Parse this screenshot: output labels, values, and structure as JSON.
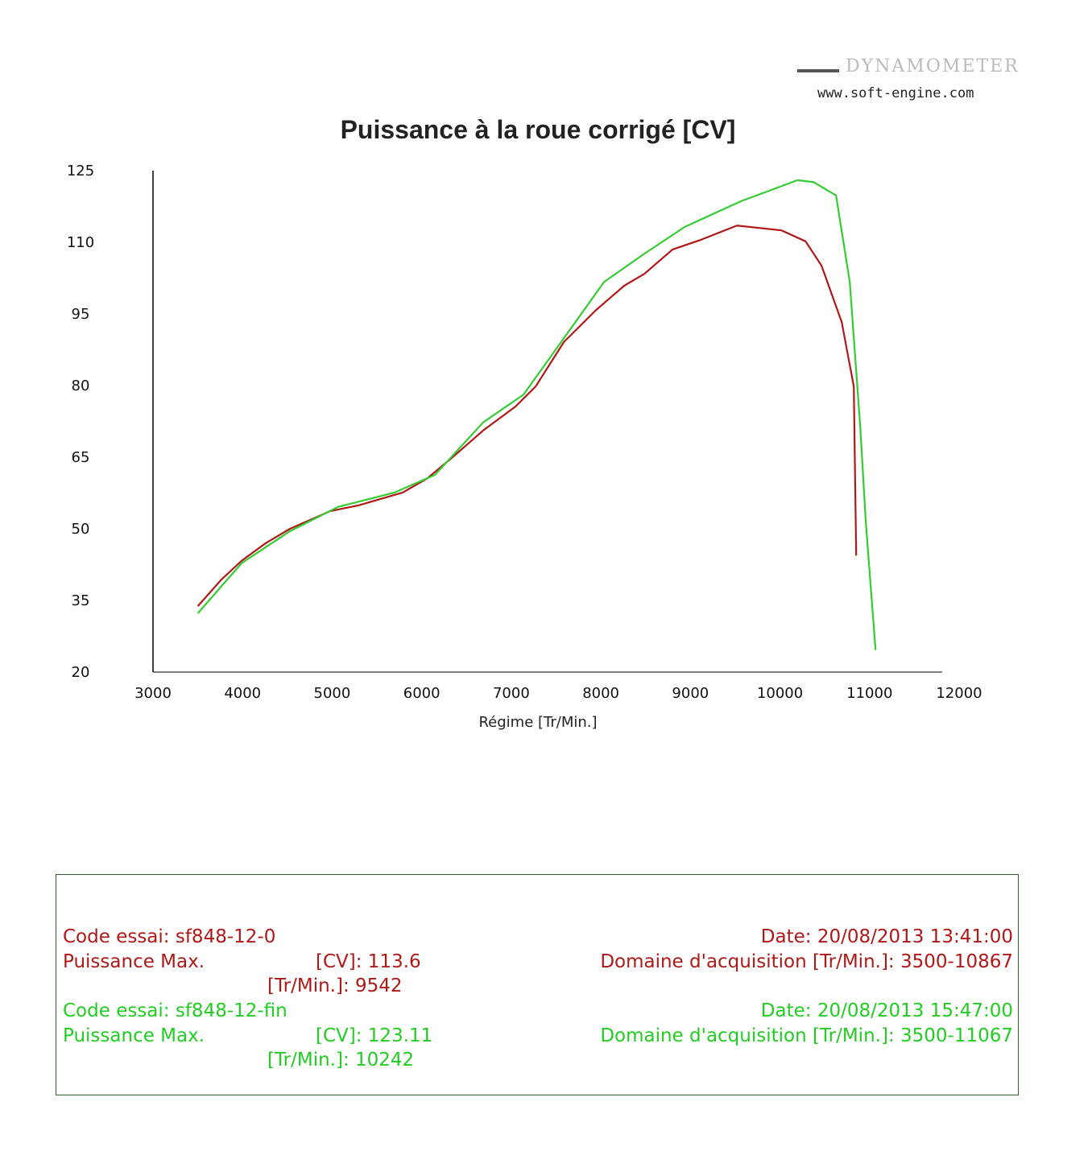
{
  "header": {
    "brand": "DYNAMOMETER",
    "url": "www.soft-engine.com"
  },
  "chart_data": {
    "type": "line",
    "title": "Puissance à la roue corrigé [CV]",
    "xlabel": "Régime [Tr/Min.]",
    "ylabel": "",
    "xlim": [
      3000,
      12000
    ],
    "ylim": [
      20,
      125
    ],
    "xticks": [
      "3000",
      "4000",
      "5000",
      "6000",
      "7000",
      "8000",
      "9000",
      "10000",
      "11000",
      "12000"
    ],
    "yticks": [
      "125",
      "110",
      "95",
      "80",
      "65",
      "50",
      "35",
      "20"
    ],
    "grid": false,
    "colors": {
      "red": "#b01818",
      "green": "#33cc33"
    },
    "series": [
      {
        "color": "#b01818",
        "x": [
          3500,
          3765,
          3989,
          4259,
          4529,
          4978,
          5293,
          5788,
          6058,
          6327,
          6687,
          7047,
          7272,
          7587,
          7946,
          8261,
          8486,
          8801,
          9115,
          9520,
          10015,
          10285,
          10464,
          10689,
          10824,
          10851
        ],
        "y": [
          33.8,
          39.4,
          43.3,
          47.0,
          50.0,
          53.7,
          54.9,
          57.6,
          60.5,
          64.7,
          70.6,
          75.6,
          79.8,
          89.1,
          95.8,
          100.9,
          103.4,
          108.5,
          110.5,
          113.5,
          112.5,
          110.2,
          105.1,
          93.3,
          79.8,
          44.4
        ]
      },
      {
        "color": "#33cc33",
        "x": [
          3500,
          3989,
          4529,
          5068,
          5698,
          6148,
          6687,
          7137,
          7587,
          8036,
          8486,
          8935,
          9565,
          10195,
          10374,
          10626,
          10779,
          10896,
          10959,
          11067
        ],
        "y": [
          32.3,
          42.8,
          49.5,
          54.6,
          57.6,
          61.3,
          72.3,
          78.1,
          89.9,
          101.7,
          107.6,
          113.2,
          118.6,
          123.0,
          122.6,
          119.8,
          101.7,
          71.4,
          51.2,
          24.6
        ]
      }
    ]
  },
  "legend": {
    "red": {
      "code": "Code essai: sf848-12-0",
      "pmax": "Puissance Max.",
      "cv": "[CV]: 113.6",
      "rpm": "[Tr/Min.]: 9542",
      "date": "Date: 20/08/2013 13:41:00",
      "domain": "Domaine d'acquisition [Tr/Min.]: 3500-10867"
    },
    "green": {
      "code": "Code essai: sf848-12-fin",
      "pmax": "Puissance Max.",
      "cv": "[CV]: 123.11",
      "rpm": "[Tr/Min.]: 10242",
      "date": "Date: 20/08/2013 15:47:00",
      "domain": "Domaine d'acquisition [Tr/Min.]: 3500-11067"
    }
  }
}
